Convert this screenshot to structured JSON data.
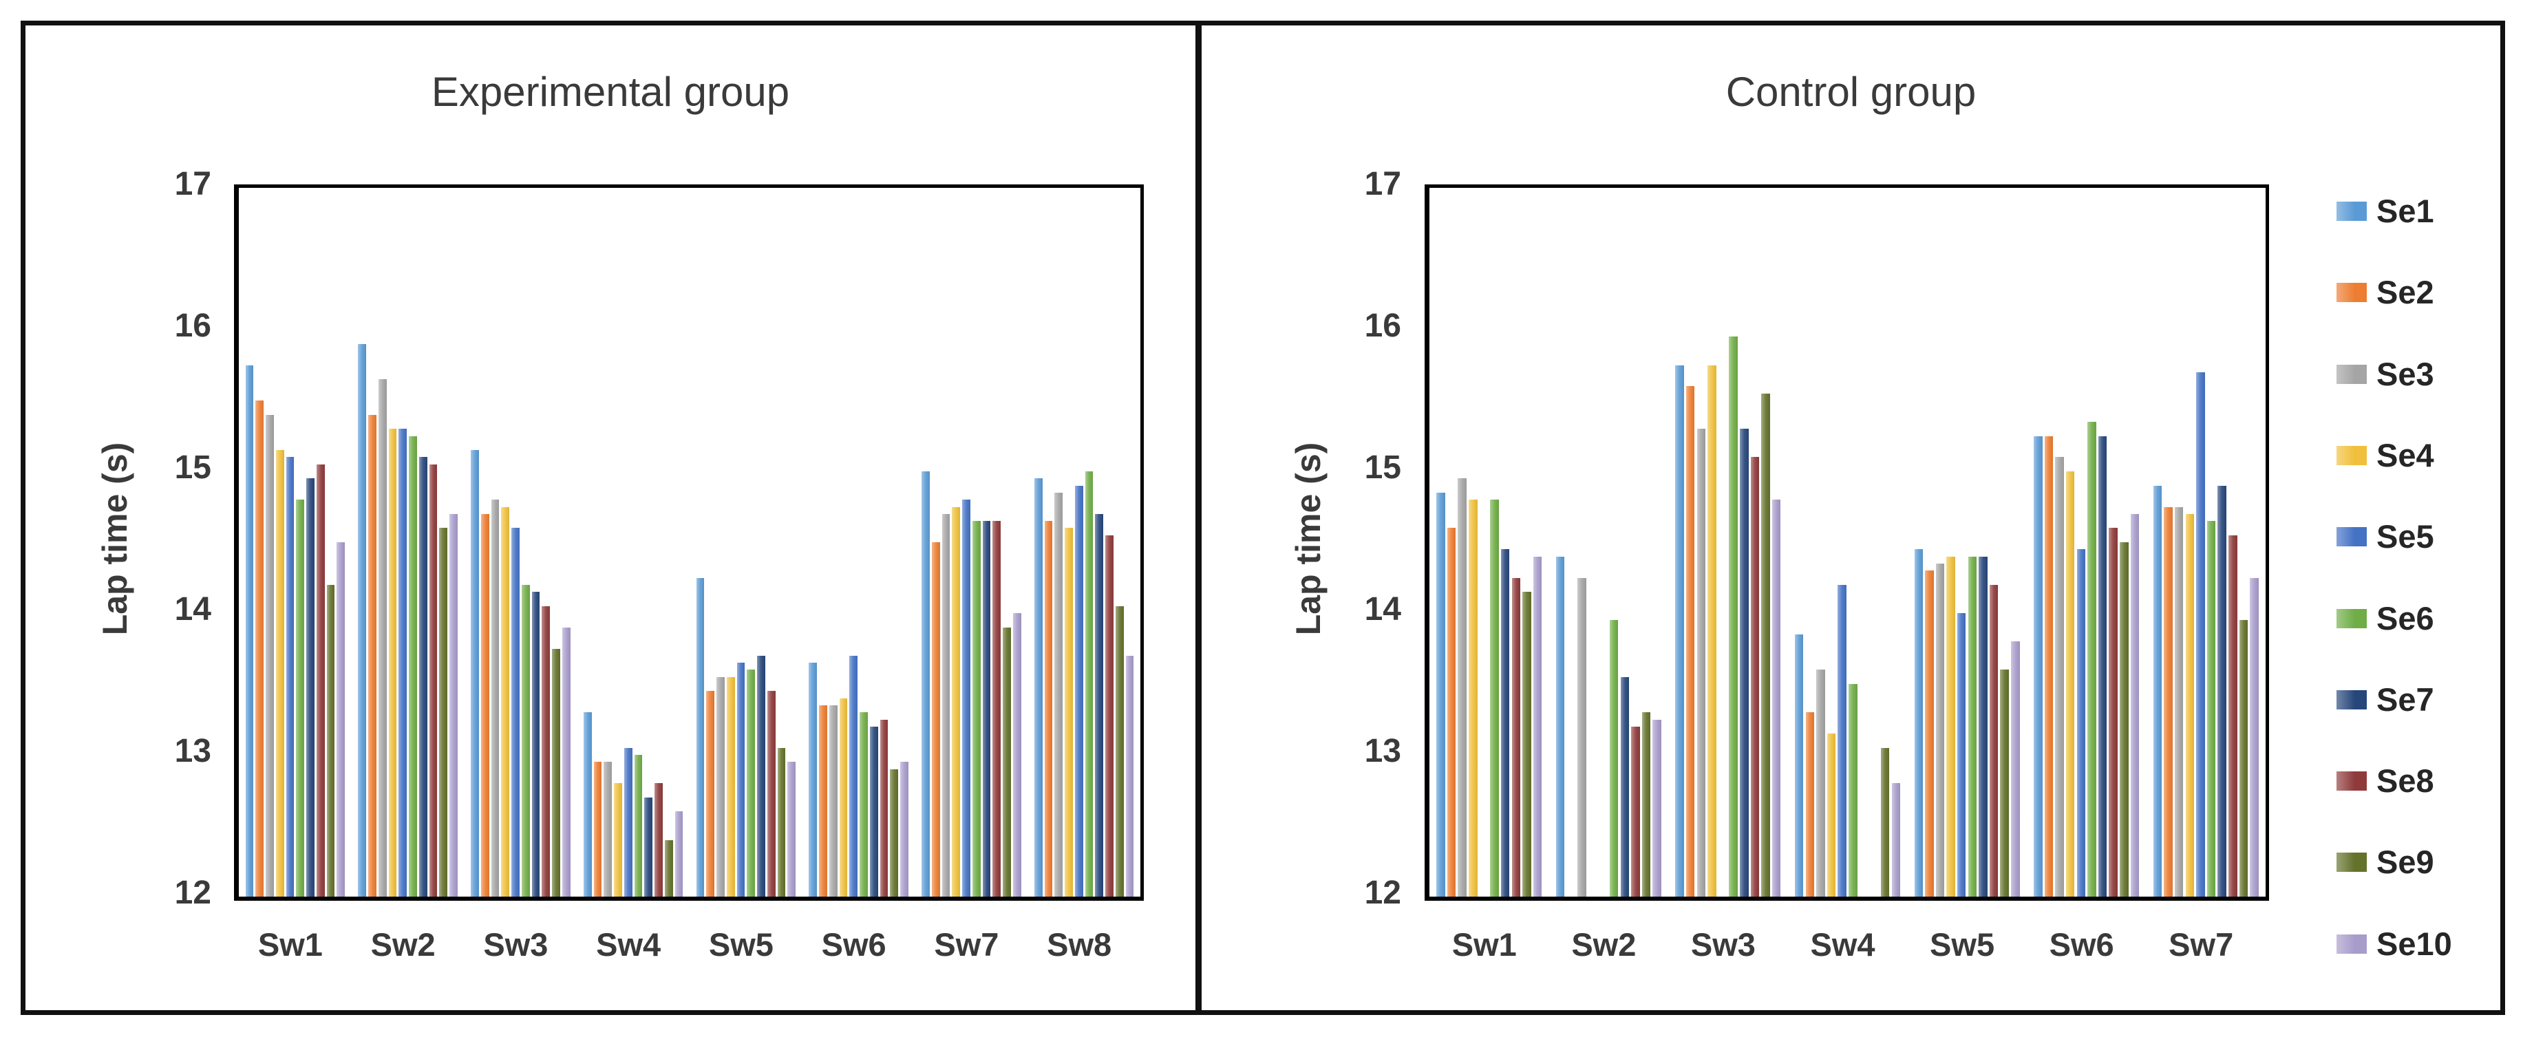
{
  "page": {
    "background": "#ffffff",
    "border_color": "#111111"
  },
  "chart_data": [
    {
      "type": "bar",
      "title": "Experimental group",
      "xlabel": "",
      "ylabel": "Lap time (s)",
      "ylim": [
        12,
        17
      ],
      "ytick_labels": [
        "17",
        "16",
        "15",
        "14",
        "13",
        "12"
      ],
      "grid": false,
      "legend_position": "none",
      "categories": [
        "Sw1",
        "Sw2",
        "Sw3",
        "Sw4",
        "Sw5",
        "Sw6",
        "Sw7",
        "Sw8"
      ],
      "series": [
        {
          "name": "Se1",
          "color": "#5B9BD5",
          "values": [
            15.75,
            15.9,
            15.15,
            13.3,
            14.25,
            13.65,
            15.0,
            14.95
          ]
        },
        {
          "name": "Se2",
          "color": "#ED7D31",
          "values": [
            15.5,
            15.4,
            14.7,
            12.95,
            13.45,
            13.35,
            14.5,
            14.65
          ]
        },
        {
          "name": "Se3",
          "color": "#A5A5A5",
          "values": [
            15.4,
            15.65,
            14.8,
            12.95,
            13.55,
            13.35,
            14.7,
            14.85
          ]
        },
        {
          "name": "Se4",
          "color": "#F0C03C",
          "values": [
            15.15,
            15.3,
            14.75,
            12.8,
            13.55,
            13.4,
            14.75,
            14.6
          ]
        },
        {
          "name": "Se5",
          "color": "#4472C4",
          "values": [
            15.1,
            15.3,
            14.6,
            13.05,
            13.65,
            13.7,
            14.8,
            14.9
          ]
        },
        {
          "name": "Se6",
          "color": "#70AD47",
          "values": [
            14.8,
            15.25,
            14.2,
            13.0,
            13.6,
            13.3,
            14.65,
            15.0
          ]
        },
        {
          "name": "Se7",
          "color": "#27477B",
          "values": [
            14.95,
            15.1,
            14.15,
            12.7,
            13.7,
            13.2,
            14.65,
            14.7
          ]
        },
        {
          "name": "Se8",
          "color": "#8F3B3B",
          "values": [
            15.05,
            15.05,
            14.05,
            12.8,
            13.45,
            13.25,
            14.65,
            14.55
          ]
        },
        {
          "name": "Se9",
          "color": "#64722B",
          "values": [
            14.2,
            14.6,
            13.75,
            12.4,
            13.05,
            12.9,
            13.9,
            14.05
          ]
        },
        {
          "name": "Se10",
          "color": "#A89CCB",
          "values": [
            14.5,
            14.7,
            13.9,
            12.6,
            12.95,
            12.95,
            14.0,
            13.7
          ]
        }
      ]
    },
    {
      "type": "bar",
      "title": "Control group",
      "xlabel": "",
      "ylabel": "Lap time (s)",
      "ylim": [
        12,
        17
      ],
      "ytick_labels": [
        "17",
        "16",
        "15",
        "14",
        "13",
        "12"
      ],
      "grid": false,
      "legend_position": "right",
      "categories": [
        "Sw1",
        "Sw2",
        "Sw3",
        "Sw4",
        "Sw5",
        "Sw6",
        "Sw7"
      ],
      "series": [
        {
          "name": "Se1",
          "color": "#5B9BD5",
          "values": [
            14.85,
            14.4,
            15.75,
            13.85,
            14.45,
            15.25,
            14.9
          ]
        },
        {
          "name": "Se2",
          "color": "#ED7D31",
          "values": [
            14.6,
            null,
            15.6,
            13.3,
            14.3,
            15.25,
            14.75
          ]
        },
        {
          "name": "Se3",
          "color": "#A5A5A5",
          "values": [
            14.95,
            14.25,
            15.3,
            13.6,
            14.35,
            15.1,
            14.75
          ]
        },
        {
          "name": "Se4",
          "color": "#F0C03C",
          "values": [
            14.8,
            null,
            15.75,
            13.15,
            14.4,
            15.0,
            14.7
          ]
        },
        {
          "name": "Se5",
          "color": "#4472C4",
          "values": [
            null,
            null,
            null,
            14.2,
            14.0,
            14.45,
            15.7
          ]
        },
        {
          "name": "Se6",
          "color": "#70AD47",
          "values": [
            14.8,
            13.95,
            15.95,
            13.5,
            14.4,
            15.35,
            14.65
          ]
        },
        {
          "name": "Se7",
          "color": "#27477B",
          "values": [
            14.45,
            13.55,
            15.3,
            null,
            14.4,
            15.25,
            14.9
          ]
        },
        {
          "name": "Se8",
          "color": "#8F3B3B",
          "values": [
            14.25,
            13.2,
            15.1,
            null,
            14.2,
            14.6,
            14.55
          ]
        },
        {
          "name": "Se9",
          "color": "#64722B",
          "values": [
            14.15,
            13.3,
            15.55,
            13.05,
            13.6,
            14.5,
            13.95
          ]
        },
        {
          "name": "Se10",
          "color": "#A89CCB",
          "values": [
            14.4,
            13.25,
            14.8,
            12.8,
            13.8,
            14.7,
            14.25
          ]
        }
      ]
    }
  ],
  "legend": {
    "entries": [
      "Se1",
      "Se2",
      "Se3",
      "Se4",
      "Se5",
      "Se6",
      "Se7",
      "Se8",
      "Se9",
      "Se10"
    ]
  }
}
